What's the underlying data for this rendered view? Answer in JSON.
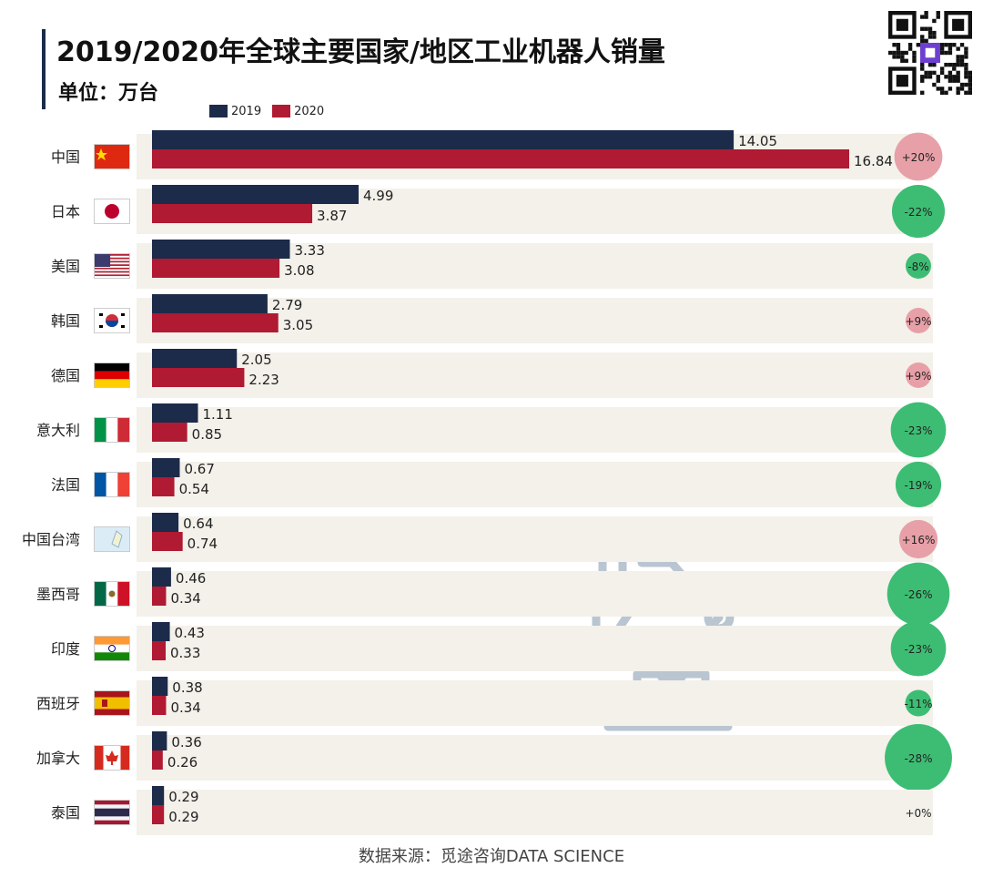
{
  "header": {
    "title": "2019/2020年全球主要国家/地区工业机器人销量",
    "subtitle": "单位：万台"
  },
  "legend": {
    "items": [
      {
        "label": "2019",
        "color": "#1c2b4a"
      },
      {
        "label": "2020",
        "color": "#b01a32"
      }
    ]
  },
  "footer": {
    "source": "数据来源：觅途咨询DATA SCIENCE"
  },
  "colors": {
    "series_2019": "#1c2b4a",
    "series_2020": "#b01a32",
    "increase_badge": "#e8a0a8",
    "decrease_badge": "#3dbd73",
    "row_stripe": "#f3f1ea",
    "robot_icon": "#b9c5d1"
  },
  "decor": {
    "robot_arm": "robot-arm-icon",
    "qr_code": "qr-code-icon"
  },
  "chart_data": {
    "type": "bar",
    "orientation": "horizontal",
    "categories": [
      "中国",
      "日本",
      "美国",
      "韩国",
      "德国",
      "意大利",
      "法国",
      "中国台湾",
      "墨西哥",
      "印度",
      "西班牙",
      "加拿大",
      "泰国"
    ],
    "flags": [
      "cn-flag-icon",
      "jp-flag-icon",
      "us-flag-icon",
      "kr-flag-icon",
      "de-flag-icon",
      "it-flag-icon",
      "fr-flag-icon",
      "tw-map-icon",
      "mx-flag-icon",
      "in-flag-icon",
      "es-flag-icon",
      "ca-flag-icon",
      "th-flag-icon"
    ],
    "series": [
      {
        "name": "2019",
        "values": [
          14.05,
          4.99,
          3.33,
          2.79,
          2.05,
          1.11,
          0.67,
          0.64,
          0.46,
          0.43,
          0.38,
          0.36,
          0.29
        ]
      },
      {
        "name": "2020",
        "values": [
          16.84,
          3.87,
          3.08,
          3.05,
          2.23,
          0.85,
          0.54,
          0.74,
          0.34,
          0.33,
          0.34,
          0.26,
          0.29
        ]
      }
    ],
    "value_labels_2019": [
      "14.05",
      "4.99",
      "3.33",
      "2.79",
      "2.05",
      "1.11",
      "0.67",
      "0.64",
      "0.46",
      "0.43",
      "0.38",
      "0.36",
      "0.29"
    ],
    "value_labels_2020": [
      "16.84",
      "3.87",
      "3.08",
      "3.05",
      "2.23",
      "0.85",
      "0.54",
      "0.74",
      "0.34",
      "0.33",
      "0.34",
      "0.26",
      "0.29"
    ],
    "change_labels": [
      "+20%",
      "-22%",
      "-8%",
      "+9%",
      "+9%",
      "-23%",
      "-19%",
      "+16%",
      "-26%",
      "-23%",
      "-11%",
      "-28%",
      "+0%"
    ],
    "change_values": [
      20,
      -22,
      -8,
      9,
      9,
      -23,
      -19,
      16,
      -26,
      -23,
      -11,
      -28,
      0
    ],
    "xlim": [
      0,
      17.5
    ],
    "grid": false,
    "legend_position": "top-left"
  }
}
